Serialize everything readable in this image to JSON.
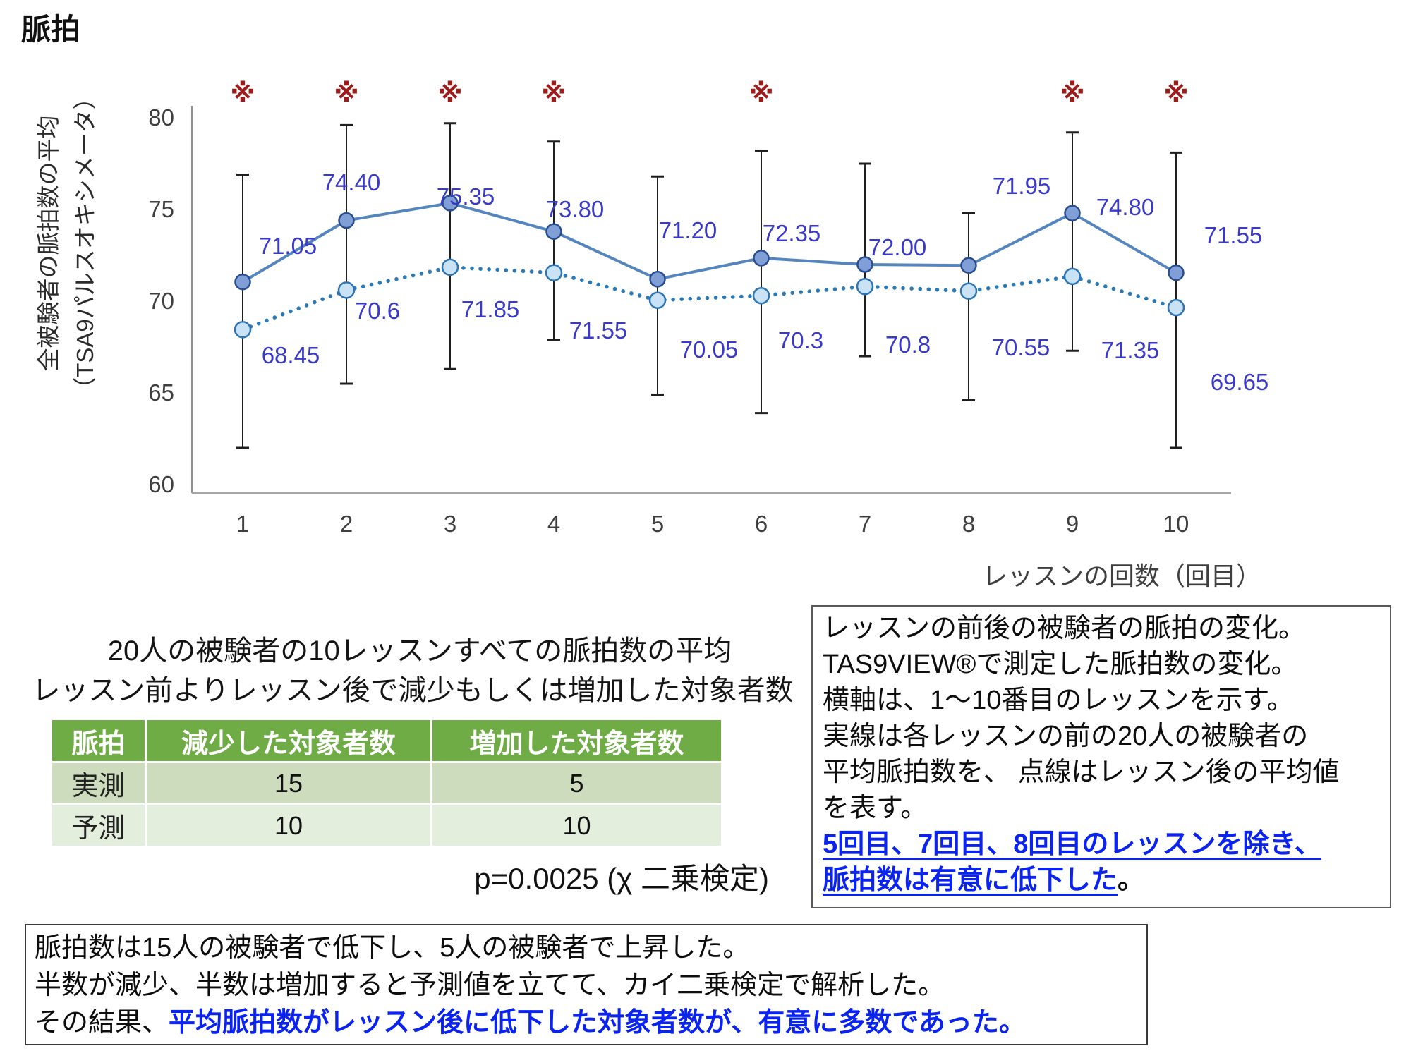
{
  "page_title": "脈拍",
  "chart": {
    "y_axis_label_line1": "全被験者の脈拍数の平均",
    "y_axis_label_line2": "（TSA9パルスオキシメータ）",
    "x_axis_title": "レッスンの回数（回目）",
    "sig_marker_glyph": "※"
  },
  "chart_data": {
    "type": "line",
    "title": "",
    "xlabel": "レッスンの回数（回目）",
    "ylabel": "全被験者の脈拍数の平均（TSA9パルスオキシメータ）",
    "ylim": [
      60,
      80
    ],
    "y_ticks": [
      "80",
      "75",
      "70",
      "65",
      "60"
    ],
    "y_tick_values": [
      80,
      75,
      70,
      65,
      60
    ],
    "x": [
      1,
      2,
      3,
      4,
      5,
      6,
      7,
      8,
      9,
      10
    ],
    "x_tick_labels": [
      "1",
      "2",
      "3",
      "4",
      "5",
      "6",
      "7",
      "8",
      "9",
      "10"
    ],
    "grid": false,
    "legend_position": "none",
    "series": [
      {
        "name": "レッスン前の平均脈拍数（実線）",
        "style": "solid",
        "values": [
          71.05,
          74.4,
          75.35,
          73.8,
          71.2,
          72.35,
          72.0,
          71.95,
          74.8,
          71.55
        ],
        "labels": [
          "71.05",
          "74.40",
          "75.35",
          "73.80",
          "71.20",
          "72.35",
          "72.00",
          "71.95",
          "74.80",
          "71.55"
        ]
      },
      {
        "name": "レッスン後の平均脈拍数（点線）",
        "style": "dotted",
        "values": [
          68.45,
          70.6,
          71.85,
          71.55,
          70.05,
          70.3,
          70.8,
          70.55,
          71.35,
          69.65
        ],
        "labels": [
          "68.45",
          "70.6",
          "71.85",
          "71.55",
          "70.05",
          "70.3",
          "70.8",
          "70.55",
          "71.35",
          "69.65"
        ]
      }
    ],
    "error_bar_top": [
      76.9,
      79.6,
      79.7,
      78.7,
      76.8,
      78.2,
      77.5,
      74.8,
      79.2,
      78.1
    ],
    "error_bar_bottom": [
      62.0,
      65.5,
      66.3,
      67.9,
      64.9,
      63.9,
      67.0,
      64.6,
      67.3,
      62.0
    ],
    "significant_lessons": [
      1,
      2,
      3,
      4,
      6,
      9,
      10
    ]
  },
  "table_section": {
    "title_line1": "20人の被験者の10レッスンすべての脈拍数の平均",
    "title_line2": "レッスン前よりレッスン後で減少もしくは増加した対象者数",
    "headers": [
      "脈拍",
      "減少した対象者数",
      "増加した対象者数"
    ],
    "rows": [
      {
        "label": "実測",
        "decreased": "15",
        "increased": "5"
      },
      {
        "label": "予測",
        "decreased": "10",
        "increased": "10"
      }
    ],
    "p_value": "p=0.0025 (χ 二乗検定)"
  },
  "right_note": {
    "lines": [
      "レッスンの前後の被験者の脈拍の変化。",
      "TAS9VIEW®で測定した脈拍数の変化。",
      "横軸は、1～10番目のレッスンを示す。",
      "実線は各レッスンの前の20人の被験者の",
      "平均脈拍数を、 点線はレッスン後の平均値",
      "を表す。"
    ],
    "emphasis_line1": " 5回目、7回目、8回目のレッスンを除き、",
    "emphasis_line2": "脈拍数は有意に低下した",
    "emphasis_suffix": "。"
  },
  "bottom_note": {
    "line1": "脈拍数は15人の被験者で低下し、5人の被験者で上昇した。",
    "line2": "半数が減少、半数は増加すると予測値を立てて、カイ二乗検定で解析した。",
    "line3_prefix": "その結果、",
    "line3_emphasis": "平均脈拍数がレッスン後に低下した対象者数が、有意に多数であった。"
  },
  "colors": {
    "solid_line": "#5585bf",
    "solid_marker_fill": "#7f9fd6",
    "solid_marker_edge": "#2a4d8f",
    "dotted_line": "#2b7ab8",
    "dotted_marker_fill": "#c9e2f6",
    "dotted_marker_edge": "#2e75b6",
    "data_label": "#3a3ac8",
    "sig_marker": "#9e1b1b",
    "error_bar": "#1f1f1f",
    "axis_line": "#a6a6a6",
    "tick_text": "#3f3f3f",
    "table_header_bg": "#6fac46",
    "table_row1_bg": "#ccdcbd",
    "table_row2_bg": "#e4eedd",
    "emphasis_blue": "#0a23ee"
  }
}
